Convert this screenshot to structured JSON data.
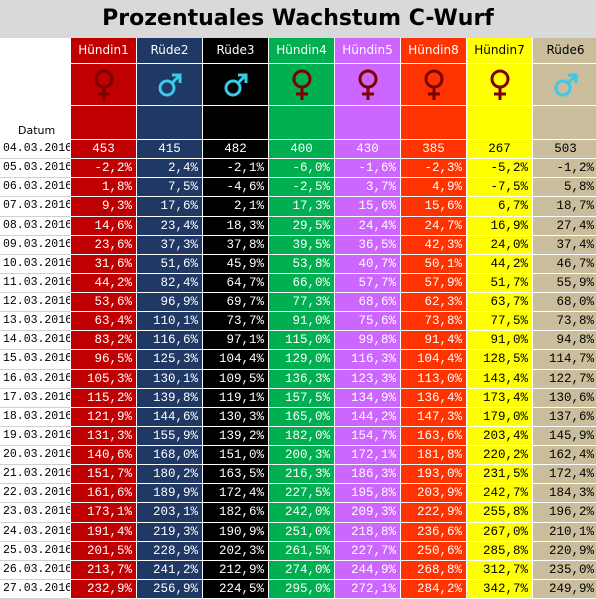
{
  "title": "Prozentuales Wachstum C-Wurf",
  "date_label": "Datum",
  "columns": [
    {
      "name": "Hündin1",
      "sex": "female",
      "bg": "#c00000",
      "fg": "#ffffff",
      "sym": "#7b0000"
    },
    {
      "name": "Rüde2",
      "sex": "male",
      "bg": "#1f3864",
      "fg": "#ffffff",
      "sym": "#3cc8e8"
    },
    {
      "name": "Rüde3",
      "sex": "male",
      "bg": "#000000",
      "fg": "#ffffff",
      "sym": "#3cc8e8"
    },
    {
      "name": "Hündin4",
      "sex": "female",
      "bg": "#00b050",
      "fg": "#ffffff",
      "sym": "#7b0000"
    },
    {
      "name": "Hündin5",
      "sex": "female",
      "bg": "#cc66ff",
      "fg": "#ffffff",
      "sym": "#7b0000"
    },
    {
      "name": "Hündin8",
      "sex": "female",
      "bg": "#ff3300",
      "fg": "#ffffff",
      "sym": "#7b0000"
    },
    {
      "name": "Hündin7",
      "sex": "female",
      "bg": "#ffff00",
      "fg": "#000000",
      "sym": "#7b0000"
    },
    {
      "name": "Rüde6",
      "sex": "male",
      "bg": "#c9bd9b",
      "fg": "#000000",
      "sym": "#3cc8e8"
    }
  ],
  "rows": [
    {
      "date": "04.03.2016",
      "values": [
        "453",
        "415",
        "482",
        "400",
        "430",
        "385",
        "267",
        "503"
      ]
    },
    {
      "date": "05.03.2016",
      "values": [
        "-2,2%",
        "2,4%",
        "-2,1%",
        "-6,0%",
        "-1,6%",
        "-2,3%",
        "-5,2%",
        "-1,2%"
      ]
    },
    {
      "date": "06.03.2016",
      "values": [
        "1,8%",
        "7,5%",
        "-4,6%",
        "-2,5%",
        "3,7%",
        "4,9%",
        "-7,5%",
        "5,8%"
      ]
    },
    {
      "date": "07.03.2016",
      "values": [
        "9,3%",
        "17,6%",
        "2,1%",
        "17,3%",
        "15,6%",
        "15,6%",
        "6,7%",
        "18,7%"
      ]
    },
    {
      "date": "08.03.2016",
      "values": [
        "14,6%",
        "23,4%",
        "18,3%",
        "29,5%",
        "24,4%",
        "24,7%",
        "16,9%",
        "27,4%"
      ]
    },
    {
      "date": "09.03.2016",
      "values": [
        "23,6%",
        "37,3%",
        "37,8%",
        "39,5%",
        "36,5%",
        "42,3%",
        "24,0%",
        "37,4%"
      ]
    },
    {
      "date": "10.03.2016",
      "values": [
        "31,6%",
        "51,6%",
        "45,9%",
        "53,8%",
        "40,7%",
        "50,1%",
        "44,2%",
        "46,7%"
      ]
    },
    {
      "date": "11.03.2016",
      "values": [
        "44,2%",
        "82,4%",
        "64,7%",
        "66,0%",
        "57,7%",
        "57,9%",
        "51,7%",
        "55,9%"
      ]
    },
    {
      "date": "12.03.2016",
      "values": [
        "53,6%",
        "96,9%",
        "69,7%",
        "77,3%",
        "68,6%",
        "62,3%",
        "63,7%",
        "68,0%"
      ]
    },
    {
      "date": "13.03.2016",
      "values": [
        "63,4%",
        "110,1%",
        "73,7%",
        "91,0%",
        "75,6%",
        "73,8%",
        "77,5%",
        "73,8%"
      ]
    },
    {
      "date": "14.03.2016",
      "values": [
        "83,2%",
        "116,6%",
        "97,1%",
        "115,0%",
        "99,8%",
        "91,4%",
        "91,0%",
        "94,8%"
      ]
    },
    {
      "date": "15.03.2016",
      "values": [
        "96,5%",
        "125,3%",
        "104,4%",
        "129,0%",
        "116,3%",
        "104,4%",
        "128,5%",
        "114,7%"
      ]
    },
    {
      "date": "16.03.2016",
      "values": [
        "105,3%",
        "130,1%",
        "109,5%",
        "136,3%",
        "123,3%",
        "113,0%",
        "143,4%",
        "122,7%"
      ]
    },
    {
      "date": "17.03.2016",
      "values": [
        "115,2%",
        "139,8%",
        "119,1%",
        "157,5%",
        "134,9%",
        "136,4%",
        "173,4%",
        "130,6%"
      ]
    },
    {
      "date": "18.03.2016",
      "values": [
        "121,9%",
        "144,6%",
        "130,3%",
        "165,0%",
        "144,2%",
        "147,3%",
        "179,0%",
        "137,6%"
      ]
    },
    {
      "date": "19.03.2016",
      "values": [
        "131,3%",
        "155,9%",
        "139,2%",
        "182,0%",
        "154,7%",
        "163,6%",
        "203,4%",
        "145,9%"
      ]
    },
    {
      "date": "20.03.2016",
      "values": [
        "140,6%",
        "168,0%",
        "151,0%",
        "200,3%",
        "172,1%",
        "181,8%",
        "220,2%",
        "162,4%"
      ]
    },
    {
      "date": "21.03.2016",
      "values": [
        "151,7%",
        "180,2%",
        "163,5%",
        "216,3%",
        "186,3%",
        "193,0%",
        "231,5%",
        "172,4%"
      ]
    },
    {
      "date": "22.03.2016",
      "values": [
        "161,6%",
        "189,9%",
        "172,4%",
        "227,5%",
        "195,8%",
        "203,9%",
        "242,7%",
        "184,3%"
      ]
    },
    {
      "date": "23.03.2016",
      "values": [
        "173,1%",
        "203,1%",
        "182,6%",
        "242,0%",
        "209,3%",
        "222,9%",
        "255,8%",
        "196,2%"
      ]
    },
    {
      "date": "24.03.2016",
      "values": [
        "191,4%",
        "219,3%",
        "190,9%",
        "251,0%",
        "218,8%",
        "236,6%",
        "267,0%",
        "210,1%"
      ]
    },
    {
      "date": "25.03.2016",
      "values": [
        "201,5%",
        "228,9%",
        "202,3%",
        "261,5%",
        "227,7%",
        "250,6%",
        "285,8%",
        "220,9%"
      ]
    },
    {
      "date": "26.03.2016",
      "values": [
        "213,7%",
        "241,2%",
        "212,9%",
        "274,0%",
        "244,9%",
        "268,8%",
        "312,7%",
        "235,0%"
      ]
    },
    {
      "date": "27.03.2016",
      "values": [
        "232,9%",
        "256,9%",
        "224,5%",
        "295,0%",
        "272,1%",
        "284,2%",
        "342,7%",
        "249,9%"
      ]
    }
  ]
}
